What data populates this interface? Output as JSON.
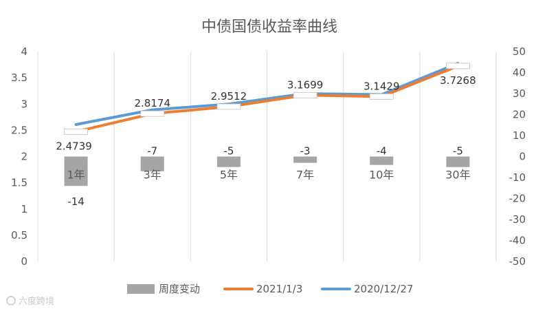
{
  "chart_data": {
    "type": "bar",
    "title": "中债国债收益率曲线",
    "categories": [
      "1年",
      "3年",
      "5年",
      "7年",
      "10年",
      "30年"
    ],
    "series": [
      {
        "name": "周度变动",
        "type": "bar",
        "axis": "right",
        "color": "#a5a5a5",
        "values": [
          -14,
          -7,
          -5,
          -3,
          -4,
          -5
        ],
        "labels": [
          "-14",
          "-7",
          "-5",
          "-3",
          "-4",
          "-5"
        ]
      },
      {
        "name": "2021/1/3",
        "type": "line",
        "axis": "left",
        "color": "#ed7d31",
        "values": [
          2.4739,
          2.8174,
          2.9512,
          3.1699,
          3.1429,
          3.7268
        ],
        "labels": [
          "2.4739",
          "2.8174",
          "2.9512",
          "3.1699",
          "3.1429",
          "3.7268"
        ]
      },
      {
        "name": "2020/12/27",
        "type": "line",
        "axis": "left",
        "color": "#5b9bd5",
        "values": [
          2.61,
          2.89,
          3.0,
          3.2,
          3.18,
          3.777
        ]
      }
    ],
    "y_left": {
      "min": 0,
      "max": 4,
      "step": 0.5,
      "tick_labels": [
        "0",
        "0.5",
        "1",
        "1.5",
        "2",
        "2.5",
        "3",
        "3.5",
        "4"
      ]
    },
    "y_right": {
      "min": -50,
      "max": 50,
      "step": 10,
      "tick_labels": [
        "-50",
        "-40",
        "-30",
        "-20",
        "-10",
        "0",
        "10",
        "20",
        "30",
        "40",
        "50"
      ]
    },
    "grid": "vertical",
    "legend_position": "bottom"
  },
  "watermark": "六度跨境"
}
